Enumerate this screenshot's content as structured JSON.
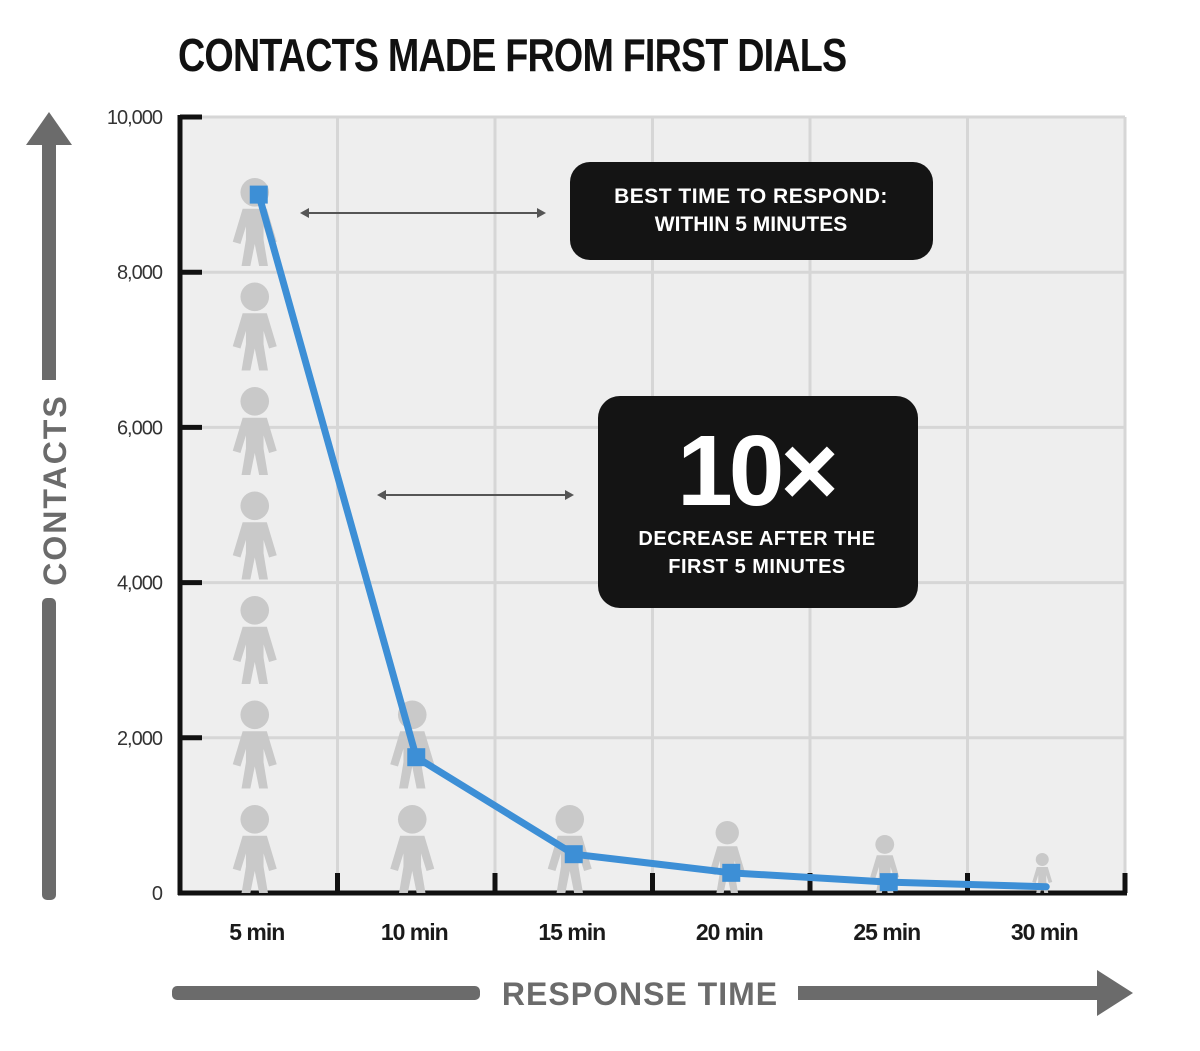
{
  "chart_data": {
    "type": "line",
    "title": "CONTACTS MADE FROM FIRST DIALS",
    "xlabel": "RESPONSE TIME",
    "ylabel": "CONTACTS",
    "categories": [
      "5 min",
      "10 min",
      "15 min",
      "20 min",
      "25 min",
      "30 min"
    ],
    "values": [
      9000,
      1750,
      500,
      260,
      140,
      80
    ],
    "ylim": [
      0,
      10000
    ],
    "yticks": [
      0,
      2000,
      4000,
      6000,
      8000,
      10000
    ],
    "ytick_labels": [
      "0",
      "2,000",
      "4,000",
      "6,000",
      "8,000",
      "10,000"
    ],
    "people_icons_per_category": [
      7,
      2,
      1,
      1,
      1,
      1
    ],
    "grid": true,
    "annotations": [
      {
        "line1": "BEST TIME TO RESPOND:",
        "line2": "WITHIN 5 MINUTES"
      },
      {
        "big": "10×",
        "line1": "DECREASE AFTER THE",
        "line2": "FIRST 5 MINUTES"
      }
    ],
    "colors": {
      "line": "#3d8fd6",
      "grid_bg": "#eeeeee",
      "grid_line": "#d6d6d6",
      "people": "#c9c9c9",
      "arrow": "#6b6b6b",
      "callout": "#141414"
    }
  }
}
